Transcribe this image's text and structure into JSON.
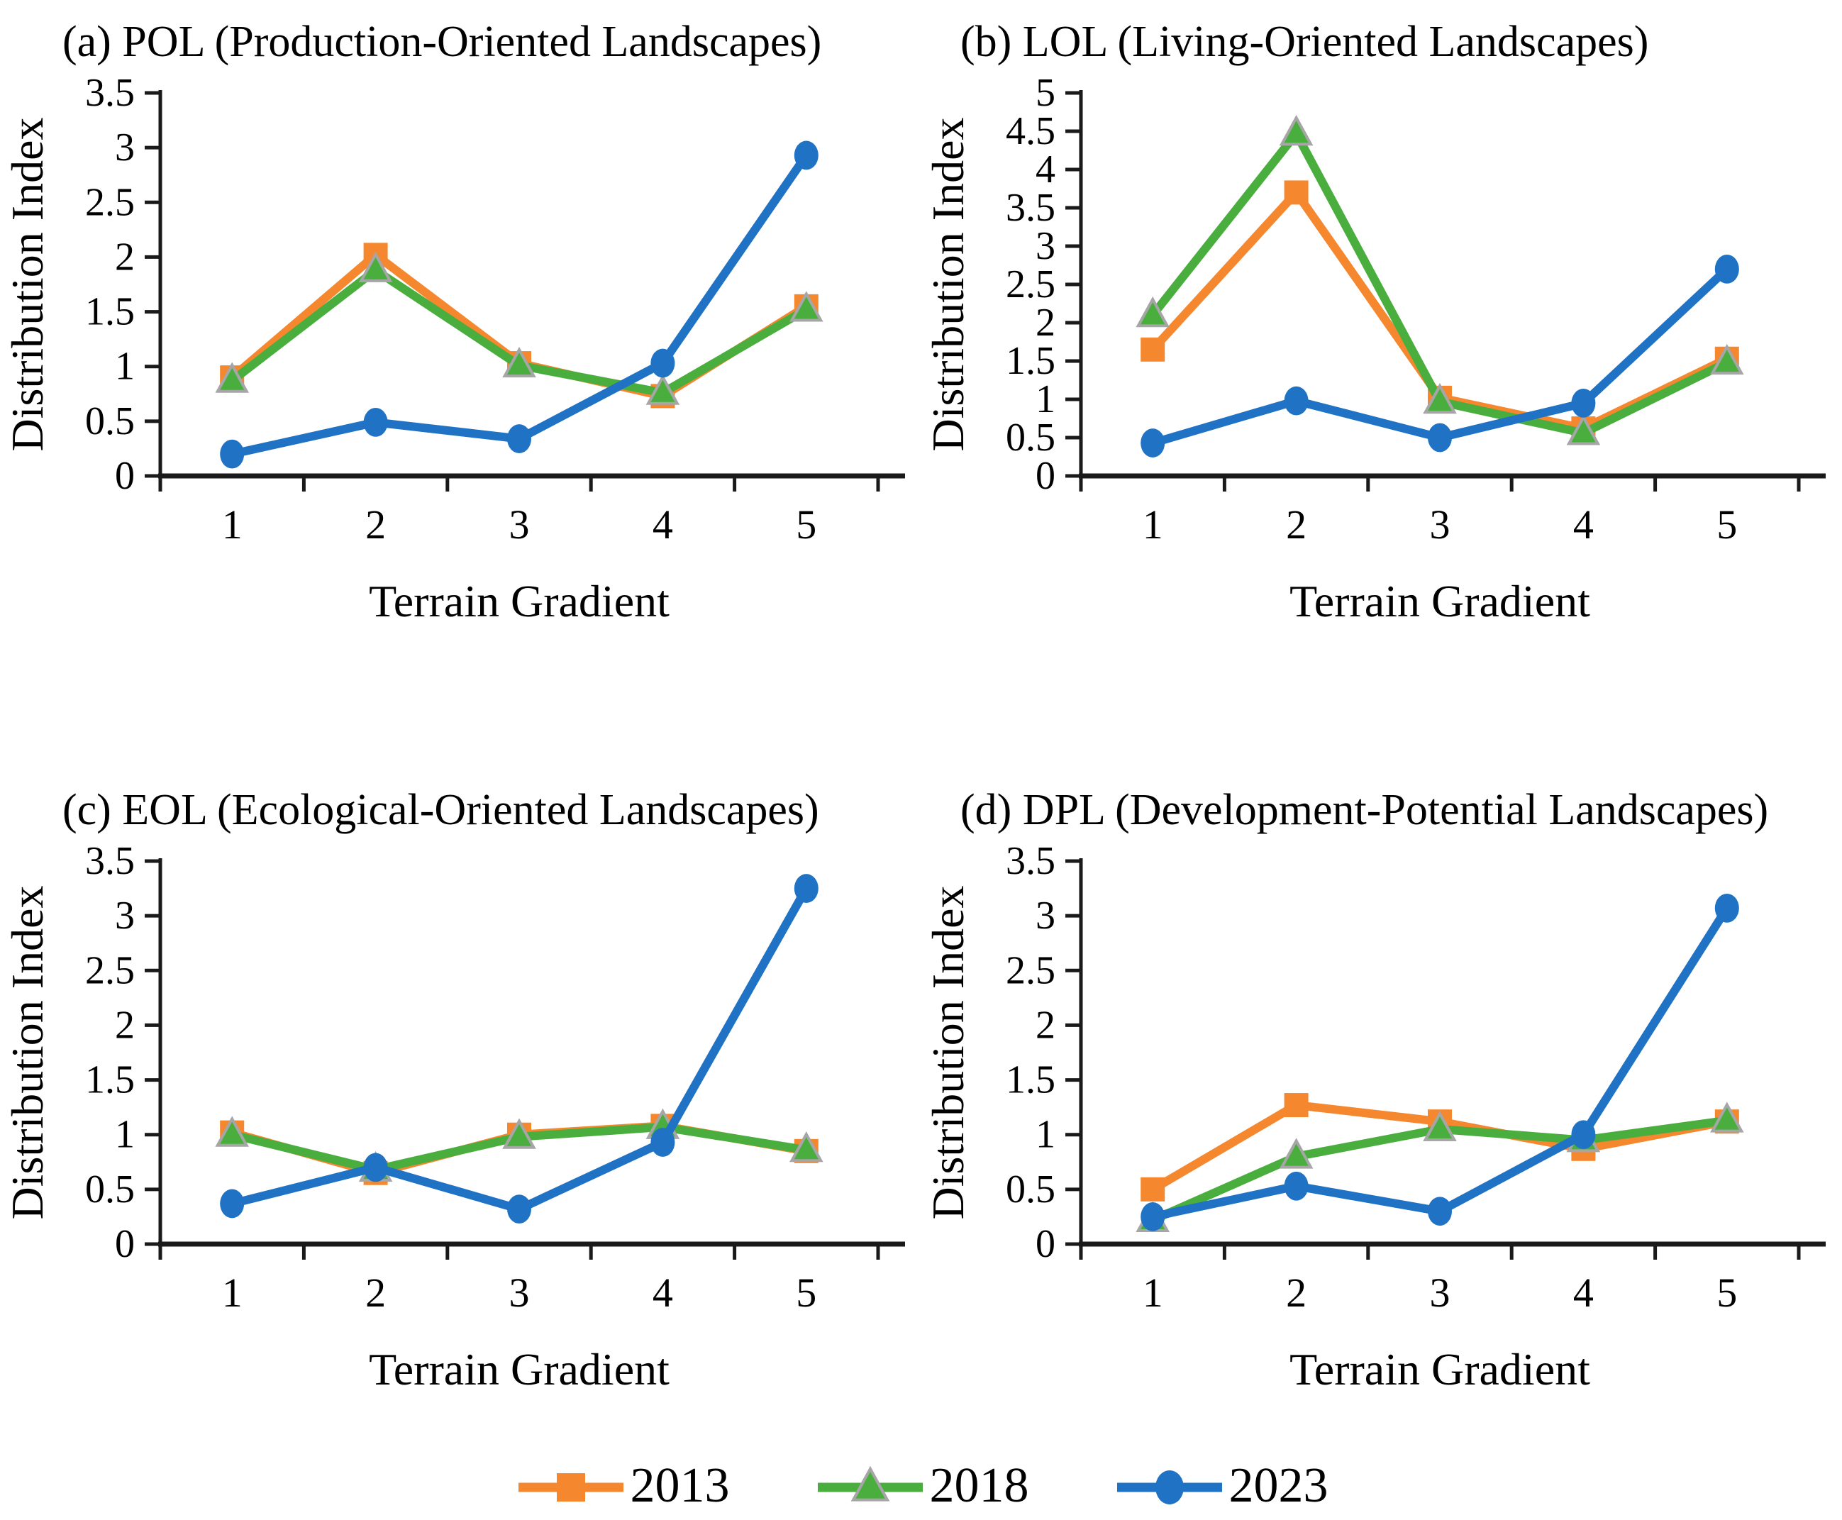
{
  "colors": {
    "axis": "#1a1a1a",
    "background": "#ffffff",
    "series_2013": "#F5872E",
    "series_2018": "#4AAE3E",
    "series_2023": "#1F72C4",
    "triangle_border": "#A6A6A6"
  },
  "legend": {
    "items": [
      {
        "label": "2013",
        "marker": "square",
        "color": "#F5872E"
      },
      {
        "label": "2018",
        "marker": "triangle",
        "color": "#4AAE3E",
        "border": "#A6A6A6"
      },
      {
        "label": "2023",
        "marker": "circle",
        "color": "#1F72C4"
      }
    ]
  },
  "chart_data": [
    {
      "type": "line",
      "title": "(a) POL (Production-Oriented Landscapes)",
      "xlabel": "Terrain Gradient",
      "ylabel": "Distribution Index",
      "categories": [
        "1",
        "2",
        "3",
        "4",
        "5"
      ],
      "ylim": [
        0,
        3.5
      ],
      "ytick_step": 0.5,
      "legend_position": "bottom-shared",
      "grid": false,
      "series": [
        {
          "name": "2013",
          "marker": "square",
          "color": "#F5872E",
          "values": [
            0.9,
            2.02,
            1.03,
            0.73,
            1.55
          ]
        },
        {
          "name": "2018",
          "marker": "triangle",
          "color": "#4AAE3E",
          "values": [
            0.87,
            1.88,
            1.01,
            0.76,
            1.52
          ]
        },
        {
          "name": "2023",
          "marker": "circle",
          "color": "#1F72C4",
          "values": [
            0.2,
            0.49,
            0.34,
            1.03,
            2.93
          ]
        }
      ]
    },
    {
      "type": "line",
      "title": "(b) LOL (Living-Oriented Landscapes)",
      "xlabel": "Terrain Gradient",
      "ylabel": "Distribution Index",
      "categories": [
        "1",
        "2",
        "3",
        "4",
        "5"
      ],
      "ylim": [
        0,
        5
      ],
      "ytick_step": 0.5,
      "legend_position": "bottom-shared",
      "grid": false,
      "series": [
        {
          "name": "2013",
          "marker": "square",
          "color": "#F5872E",
          "values": [
            1.65,
            3.7,
            1.02,
            0.62,
            1.53
          ]
        },
        {
          "name": "2018",
          "marker": "triangle",
          "color": "#4AAE3E",
          "values": [
            2.1,
            4.47,
            0.97,
            0.56,
            1.48
          ]
        },
        {
          "name": "2023",
          "marker": "circle",
          "color": "#1F72C4",
          "values": [
            0.43,
            0.98,
            0.5,
            0.95,
            2.7
          ]
        }
      ]
    },
    {
      "type": "line",
      "title": "(c) EOL (Ecological-Oriented Landscapes)",
      "xlabel": "Terrain Gradient",
      "ylabel": "Distribution Index",
      "categories": [
        "1",
        "2",
        "3",
        "4",
        "5"
      ],
      "ylim": [
        0,
        3.5
      ],
      "ytick_step": 0.5,
      "legend_position": "bottom-shared",
      "grid": false,
      "series": [
        {
          "name": "2013",
          "marker": "square",
          "color": "#F5872E",
          "values": [
            1.02,
            0.65,
            1.0,
            1.08,
            0.85
          ]
        },
        {
          "name": "2018",
          "marker": "triangle",
          "color": "#4AAE3E",
          "values": [
            1.0,
            0.68,
            0.98,
            1.07,
            0.86
          ]
        },
        {
          "name": "2023",
          "marker": "circle",
          "color": "#1F72C4",
          "values": [
            0.37,
            0.7,
            0.32,
            0.93,
            3.25
          ]
        }
      ]
    },
    {
      "type": "line",
      "title": "(d) DPL (Development-Potential Landscapes)",
      "xlabel": "Terrain Gradient",
      "ylabel": "Distribution Index",
      "categories": [
        "1",
        "2",
        "3",
        "4",
        "5"
      ],
      "ylim": [
        0,
        3.5
      ],
      "ytick_step": 0.5,
      "legend_position": "bottom-shared",
      "grid": false,
      "series": [
        {
          "name": "2013",
          "marker": "square",
          "color": "#F5872E",
          "values": [
            0.5,
            1.27,
            1.12,
            0.87,
            1.12
          ]
        },
        {
          "name": "2018",
          "marker": "triangle",
          "color": "#4AAE3E",
          "values": [
            0.22,
            0.8,
            1.05,
            0.95,
            1.13
          ]
        },
        {
          "name": "2023",
          "marker": "circle",
          "color": "#1F72C4",
          "values": [
            0.25,
            0.53,
            0.3,
            1.0,
            3.07
          ]
        }
      ]
    }
  ]
}
